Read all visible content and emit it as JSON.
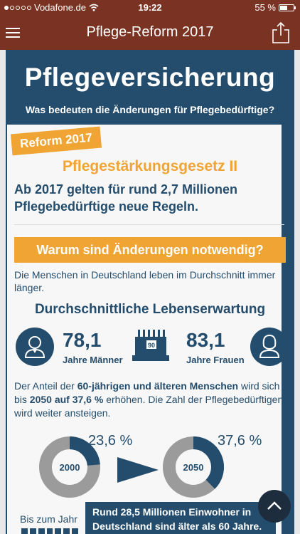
{
  "status_bar": {
    "carrier": "Vodafone.de",
    "time": "19:22",
    "battery_percent": "55 %",
    "battery_level": 0.55,
    "signal_bars_filled": 1,
    "signal_bars_total": 5
  },
  "navbar": {
    "title": "Pflege-Reform 2017",
    "menu_icon": "hamburger-icon",
    "share_icon": "share-icon"
  },
  "header": {
    "title": "Pflegeversicherung",
    "subtitle": "Was bedeuten die Änderungen für Pflegebedürftige?"
  },
  "reform": {
    "badge": "Reform 2017",
    "law_title": "Pflegestärkungsgesetz II",
    "lead": "Ab 2017 gelten für rund 2,7 Millionen Pflegebedürftige neue Regeln."
  },
  "why": {
    "banner": "Warum sind Änderungen notwendig?",
    "intro": "Die Menschen in Deutschland leben im Durchschnitt immer länger."
  },
  "life_expectancy": {
    "heading": "Durchschnittliche Lebenserwartung",
    "men_value": "78,1",
    "men_label": "Jahre Männer",
    "women_value": "83,1",
    "women_label": "Jahre Frauen",
    "cake_number": "90"
  },
  "share_text": {
    "p1": "Der Anteil der ",
    "b1": "60-jährigen und älteren Menschen",
    "p2": " wird sich bis ",
    "b2": "2050 auf 37,6 %",
    "p3": " erhöhen. Die Zahl der Pflegebedürftigen wird weiter ansteigen."
  },
  "donuts": [
    {
      "year": "2000",
      "percent_label": "23,6 %",
      "fraction": 0.236
    },
    {
      "year": "2050",
      "percent_label": "37,6 %",
      "fraction": 0.376
    }
  ],
  "bottom": {
    "bis_zum_jahr": "Bis zum Jahr",
    "box_text": "Rund 28,5 Millionen Einwohner in Deutschland sind älter als 60 Jahre."
  },
  "colors": {
    "brown": "#7a3322",
    "navy": "#244d6d",
    "orange": "#f0a433",
    "gray": "#9b9b9b"
  }
}
